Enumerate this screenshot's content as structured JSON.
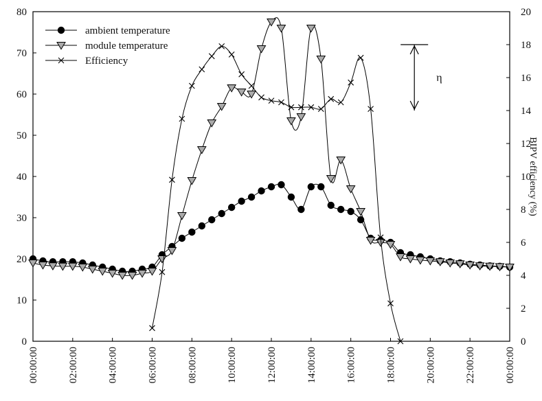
{
  "chart_data": {
    "type": "line",
    "x_ticks": [
      "00:00:00",
      "02:00:00",
      "04:00:00",
      "06:00:00",
      "08:00:00",
      "10:00:00",
      "12:00:00",
      "14:00:00",
      "16:00:00",
      "18:00:00",
      "20:00:00",
      "22:00:00",
      "00:00:00"
    ],
    "xlim": [
      0,
      24
    ],
    "ylim_left": [
      0,
      80
    ],
    "ylim_right": [
      0,
      20
    ],
    "y_ticks_left": [
      "0",
      "10",
      "20",
      "30",
      "40",
      "50",
      "60",
      "70",
      "80"
    ],
    "y_ticks_right": [
      "0",
      "2",
      "4",
      "6",
      "8",
      "10",
      "12",
      "14",
      "16",
      "18",
      "20"
    ],
    "ylabel_right": "BIPV efficiency (%)",
    "grid": false,
    "legend_position": "top-left",
    "series": [
      {
        "name": "ambient temperature",
        "axis": "left",
        "marker": "circle",
        "x": [
          0,
          0.5,
          1,
          1.5,
          2,
          2.5,
          3,
          3.5,
          4,
          4.5,
          5,
          5.5,
          6,
          6.5,
          7,
          7.5,
          8,
          8.5,
          9,
          9.5,
          10,
          10.5,
          11,
          11.5,
          12,
          12.5,
          13,
          13.5,
          14,
          14.5,
          15,
          15.5,
          16,
          16.5,
          17,
          17.5,
          18,
          18.5,
          19,
          19.5,
          20,
          20.5,
          21,
          21.5,
          22,
          22.5,
          23,
          23.5,
          24
        ],
        "values": [
          20,
          19.5,
          19.3,
          19.3,
          19.3,
          19,
          18.5,
          18,
          17.5,
          17,
          17,
          17.5,
          18,
          21,
          23,
          25,
          26.5,
          28,
          29.5,
          31,
          32.5,
          34,
          35,
          36.5,
          37.5,
          38,
          35,
          32,
          37.5,
          37.5,
          33,
          32,
          31.5,
          29.5,
          25,
          24.5,
          24,
          21.5,
          21,
          20.5,
          20,
          19.5,
          19.3,
          19,
          18.7,
          18.5,
          18.3,
          18.2,
          18
        ]
      },
      {
        "name": "module temperature",
        "axis": "left",
        "marker": "triangle-down",
        "x": [
          0,
          0.5,
          1,
          1.5,
          2,
          2.5,
          3,
          3.5,
          4,
          4.5,
          5,
          5.5,
          6,
          6.5,
          7,
          7.5,
          8,
          8.5,
          9,
          9.5,
          10,
          10.5,
          11,
          11.5,
          12,
          12.5,
          13,
          13.5,
          14,
          14.5,
          15,
          15.5,
          16,
          16.5,
          17,
          17.5,
          18,
          18.5,
          19,
          19.5,
          20,
          20.5,
          21,
          21.5,
          22,
          22.5,
          23,
          23.5,
          24
        ],
        "values": [
          19,
          18.5,
          18.3,
          18.2,
          18.2,
          18,
          17.5,
          17,
          16.5,
          16,
          16,
          16.5,
          17,
          20,
          22,
          30.5,
          39,
          46.5,
          53,
          57,
          61.5,
          60.5,
          60,
          71,
          77.5,
          76,
          53.5,
          54.5,
          76,
          68.5,
          39.5,
          44,
          37,
          31.5,
          24.5,
          24,
          23.5,
          20.5,
          20,
          19.7,
          19.5,
          19.3,
          19,
          18.8,
          18.5,
          18.3,
          18.2,
          18.1,
          18
        ]
      },
      {
        "name": "Efficiency",
        "axis": "right",
        "marker": "x",
        "x": [
          6,
          6.5,
          7,
          7.5,
          8,
          8.5,
          9,
          9.5,
          10,
          10.5,
          11,
          11.5,
          12,
          12.5,
          13,
          13.5,
          14,
          14.5,
          15,
          15.5,
          16,
          16.5,
          17,
          17.5,
          18,
          18.5
        ],
        "values": [
          0.8,
          4.2,
          9.8,
          13.5,
          15.5,
          16.5,
          17.3,
          17.9,
          17.4,
          16.2,
          15.5,
          14.8,
          14.6,
          14.5,
          14.2,
          14.2,
          14.2,
          14.1,
          14.7,
          14.5,
          15.7,
          17.2,
          14.1,
          6.3,
          2.3,
          0
        ]
      }
    ],
    "annotation": {
      "label": "η",
      "type": "double-arrow",
      "from_value": 18,
      "to_value": 14,
      "axis": "right",
      "x": 19.2
    }
  }
}
